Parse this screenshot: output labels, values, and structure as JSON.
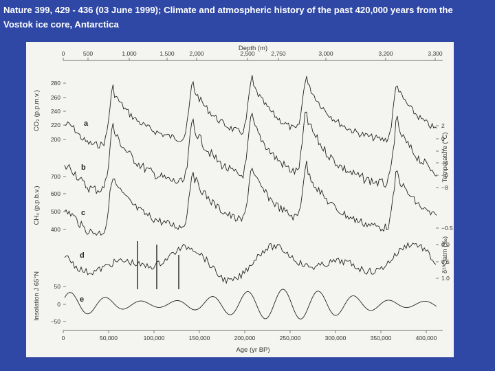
{
  "caption": {
    "line1": "Nature 399, 429 - 436 (03 June 1999); Climate and atmospheric history of the past 420,000 years from the",
    "line2": "Vostok ice core, Antarctica"
  },
  "colors": {
    "background": "#2f48a6",
    "figure_bg": "#f4f4f1",
    "ink": "#222222"
  },
  "figure": {
    "top_axis": {
      "title": "Depth (m)",
      "ticks": [
        "0",
        "500",
        "1,000",
        "1,500",
        "2,000",
        "2,500",
        "2,750",
        "3,000",
        "3,200",
        "3,300"
      ]
    },
    "bottom_axis": {
      "title": "Age (yr BP)",
      "ticks": [
        "0",
        "50,000",
        "100,000",
        "150,000",
        "200,000",
        "250,000",
        "300,000",
        "350,000",
        "400,000"
      ]
    },
    "left_axes": {
      "co2": {
        "title": "CO₂ (p.p.m.v.)",
        "ticks": [
          "280",
          "260",
          "240",
          "220",
          "200"
        ]
      },
      "ch4": {
        "title": "CH₄ (p.p.b.v.)",
        "ticks": [
          "700",
          "600",
          "500",
          "400"
        ]
      },
      "insolation": {
        "title": "Insolation J 65°N",
        "ticks": [
          "50",
          "0",
          "−50"
        ]
      }
    },
    "right_axes": {
      "temperature": {
        "title": "Temperature (°C)",
        "ticks": [
          "2",
          "0",
          "2",
          "−4",
          "−6",
          "−8"
        ]
      },
      "d18o": {
        "title": "δ¹⁸Oatm (‰)",
        "ticks": [
          "−0.5",
          "0.0",
          "0.5",
          "1.0"
        ]
      }
    },
    "panels": [
      "a",
      "b",
      "c",
      "d",
      "e"
    ]
  }
}
